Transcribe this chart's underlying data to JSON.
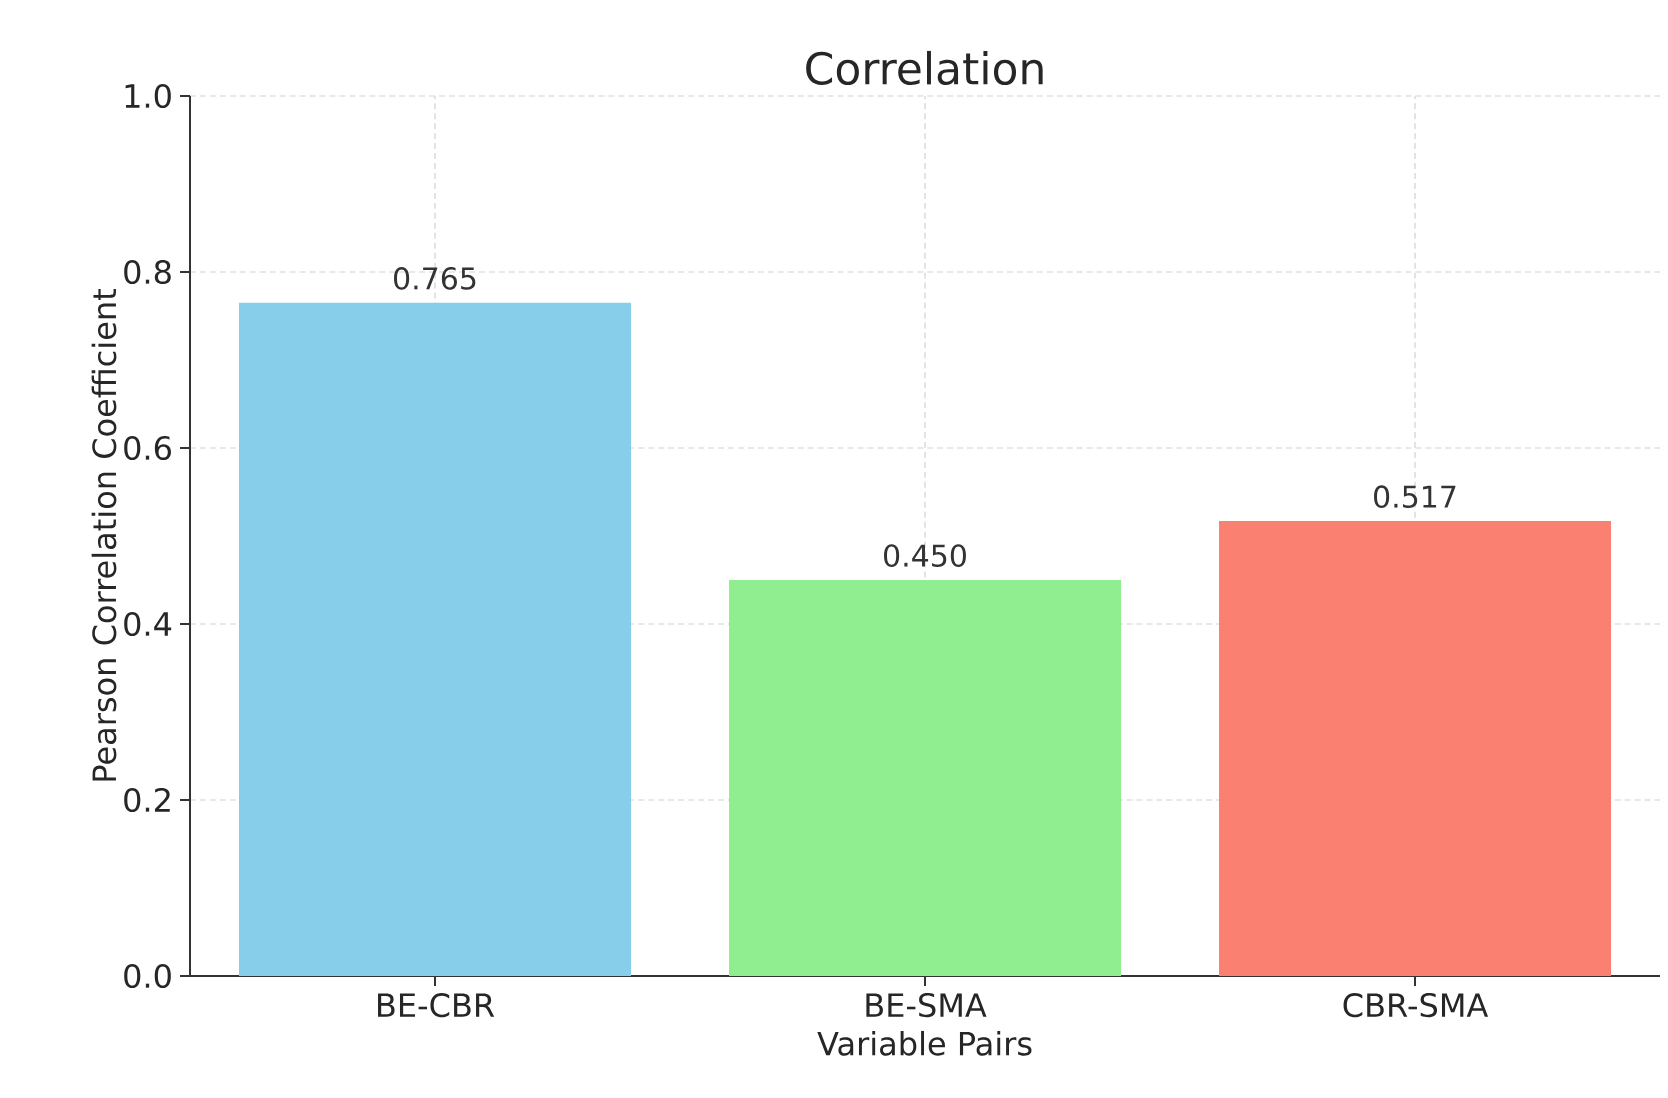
{
  "chart_data": {
    "type": "bar",
    "title": "Correlation",
    "xlabel": "Variable Pairs",
    "ylabel": "Pearson Correlation Coefficient",
    "categories": [
      "BE-CBR",
      "BE-SMA",
      "CBR-SMA"
    ],
    "values": [
      0.765,
      0.45,
      0.517
    ],
    "value_labels": [
      "0.765",
      "0.450",
      "0.517"
    ],
    "colors": [
      "#87ceeb",
      "#90ee90",
      "#fa8072"
    ],
    "ylim": [
      0,
      1.0
    ],
    "yticks": [
      {
        "value": 0,
        "label": "0.0"
      },
      {
        "value": 0.2,
        "label": "0.2"
      },
      {
        "value": 0.4,
        "label": "0.4"
      },
      {
        "value": 0.6,
        "label": "0.6"
      },
      {
        "value": 0.8,
        "label": "0.8"
      },
      {
        "value": 1.0,
        "label": "1.0"
      }
    ],
    "grid": true
  }
}
